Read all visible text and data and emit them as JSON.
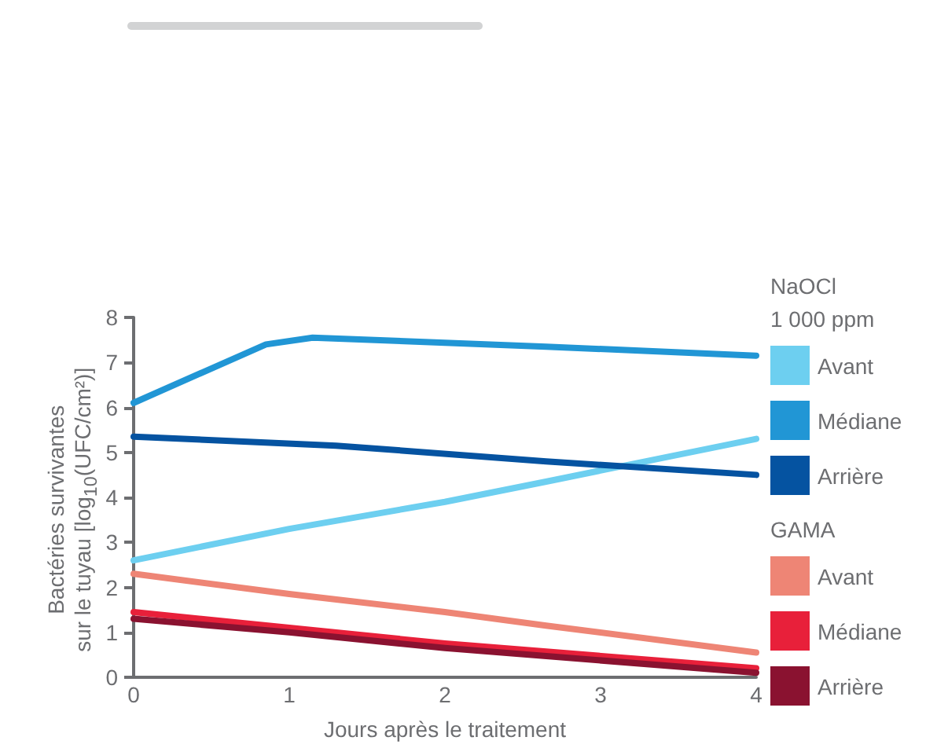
{
  "chart_data": {
    "type": "line",
    "xlabel": "Jours après le traitement",
    "ylabel": "Bactéries survivantes\nsur le tuyau [log$_{10}$(UFC/cm²)]",
    "xlim": [
      0,
      4
    ],
    "xticks": [
      0,
      1,
      2,
      3,
      4
    ],
    "ylim": [
      0,
      8
    ],
    "yticks": [
      0,
      1,
      2,
      3,
      4,
      5,
      6,
      7,
      8
    ],
    "grid": false,
    "legend": "right",
    "annotations": [
      "NaOCl\n1 000 ppm",
      "GAMA"
    ],
    "series": [
      {
        "name": "Avant",
        "color": "#6dcff0",
        "x": [
          0,
          1,
          2,
          2.65,
          4
        ],
        "values": [
          2.6,
          3.3,
          3.9,
          4.35,
          5.3
        ]
      },
      {
        "name": "Médiane",
        "color": "#2196d5",
        "x": [
          0,
          0.85,
          1.15,
          2.65,
          4
        ],
        "values": [
          6.1,
          7.4,
          7.55,
          7.35,
          7.15
        ]
      },
      {
        "name": "Arrière",
        "color": "#0553a1",
        "x": [
          0,
          1.3,
          2.65,
          4
        ],
        "values": [
          5.35,
          5.15,
          4.8,
          4.5
        ]
      },
      {
        "name": "Avant",
        "color": "#ee8575",
        "x": [
          0,
          1,
          2,
          2.65,
          4
        ],
        "values": [
          2.3,
          1.85,
          1.45,
          1.15,
          0.55
        ]
      },
      {
        "name": "Médiane",
        "color": "#e8203a",
        "x": [
          0,
          1,
          2,
          4
        ],
        "values": [
          1.45,
          1.1,
          0.75,
          0.2
        ]
      },
      {
        "name": "Arrière",
        "color": "#8a1230",
        "x": [
          0,
          1,
          2,
          4
        ],
        "values": [
          1.3,
          1.0,
          0.65,
          0.1
        ]
      }
    ]
  }
}
